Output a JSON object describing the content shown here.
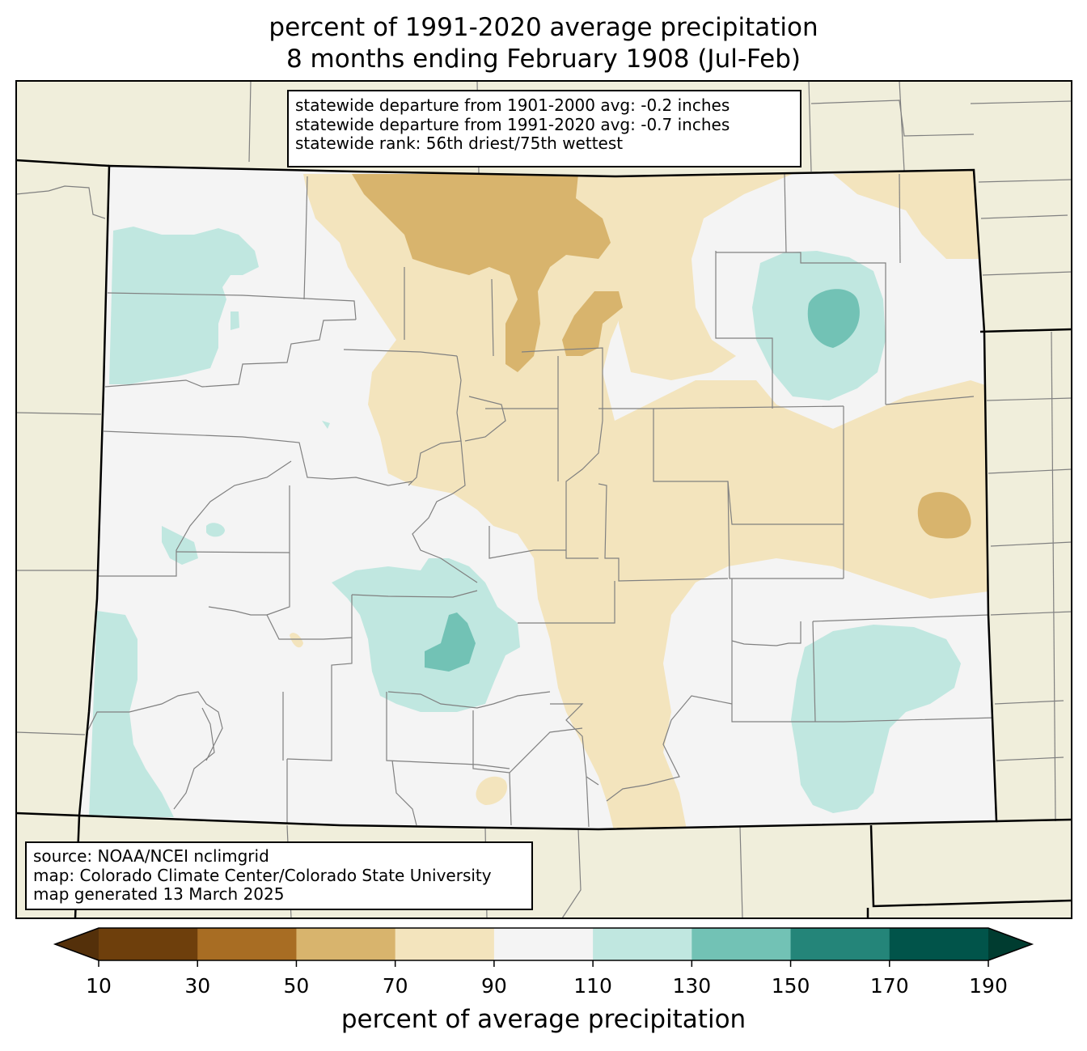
{
  "title": {
    "line1": "percent of 1991-2020 average precipitation",
    "line2": "8 months ending February 1908 (Jul-Feb)"
  },
  "stats": {
    "line1": "statewide departure from 1901-2000 avg: -0.2 inches",
    "line2": "statewide departure from 1991-2020 avg: -0.7 inches",
    "line3": "statewide rank: 56th driest/75th wettest"
  },
  "source": {
    "line1": "source: NOAA/NCEI nclimgrid",
    "line2": "map: Colorado Climate Center/Colorado State University",
    "line3": "map generated 13 March 2025"
  },
  "colorbar": {
    "label": "percent of average precipitation",
    "ticks": [
      "10",
      "30",
      "50",
      "70",
      "90",
      "110",
      "130",
      "150",
      "170",
      "190"
    ],
    "bins": [
      {
        "range": "10-30",
        "color": "#6e3f0c"
      },
      {
        "range": "30-50",
        "color": "#a86d23"
      },
      {
        "range": "50-70",
        "color": "#d8b46d"
      },
      {
        "range": "70-90",
        "color": "#f3e4bd"
      },
      {
        "range": "90-110",
        "color": "#f4f4f4"
      },
      {
        "range": "110-130",
        "color": "#c0e7e0"
      },
      {
        "range": "130-150",
        "color": "#72c2b5"
      },
      {
        "range": "150-170",
        "color": "#248579"
      },
      {
        "range": "170-190",
        "color": "#01544a"
      }
    ],
    "under_color": "#54300a",
    "over_color": "#003c30"
  },
  "colors": {
    "outside_state": "#f0eedb",
    "county_lines": "#808080",
    "state_lines": "#000000"
  }
}
